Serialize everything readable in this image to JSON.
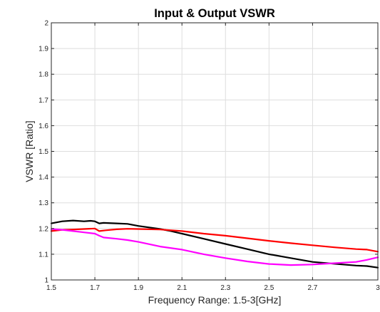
{
  "chart_data": {
    "type": "line",
    "title": "Input & Output VSWR",
    "xlabel": "Frequency Range: 1.5-3[GHz]",
    "ylabel": "VSWR [Ratio]",
    "xlim": [
      1.5,
      3
    ],
    "ylim": [
      1,
      2
    ],
    "xticks": [
      "1.5",
      "1.7",
      "1.9",
      "2.1",
      "2.3",
      "2.5",
      "2.7",
      "3"
    ],
    "xtick_values": [
      1.5,
      1.7,
      1.9,
      2.1,
      2.3,
      2.5,
      2.7,
      3
    ],
    "yticks": [
      "1",
      "1.1",
      "1.2",
      "1.3",
      "1.4",
      "1.5",
      "1.6",
      "1.7",
      "1.8",
      "1.9",
      "2"
    ],
    "ytick_values": [
      1,
      1.1,
      1.2,
      1.3,
      1.4,
      1.5,
      1.6,
      1.7,
      1.8,
      1.9,
      2
    ],
    "grid": true,
    "series": [
      {
        "color": "#000000",
        "x": [
          1.5,
          1.55,
          1.6,
          1.65,
          1.68,
          1.7,
          1.72,
          1.74,
          1.8,
          1.85,
          1.9,
          2.0,
          2.05,
          2.1,
          2.2,
          2.3,
          2.4,
          2.5,
          2.6,
          2.7,
          2.8,
          2.9,
          2.95,
          3.0
        ],
        "y": [
          1.22,
          1.228,
          1.231,
          1.228,
          1.23,
          1.228,
          1.22,
          1.222,
          1.22,
          1.218,
          1.21,
          1.198,
          1.19,
          1.18,
          1.16,
          1.14,
          1.12,
          1.1,
          1.085,
          1.07,
          1.063,
          1.056,
          1.054,
          1.048
        ]
      },
      {
        "color": "#ff0000",
        "x": [
          1.5,
          1.55,
          1.6,
          1.65,
          1.7,
          1.72,
          1.75,
          1.8,
          1.85,
          1.9,
          2.0,
          2.1,
          2.2,
          2.3,
          2.4,
          2.5,
          2.6,
          2.7,
          2.8,
          2.9,
          2.95,
          3.0
        ],
        "y": [
          1.19,
          1.195,
          1.196,
          1.198,
          1.2,
          1.19,
          1.193,
          1.197,
          1.199,
          1.198,
          1.196,
          1.19,
          1.18,
          1.172,
          1.162,
          1.152,
          1.143,
          1.135,
          1.127,
          1.12,
          1.118,
          1.11
        ]
      },
      {
        "color": "#ff00ff",
        "x": [
          1.5,
          1.55,
          1.6,
          1.65,
          1.7,
          1.72,
          1.74,
          1.8,
          1.85,
          1.9,
          2.0,
          2.1,
          2.2,
          2.3,
          2.4,
          2.5,
          2.6,
          2.7,
          2.8,
          2.9,
          2.95,
          3.0
        ],
        "y": [
          1.198,
          1.195,
          1.19,
          1.185,
          1.18,
          1.172,
          1.165,
          1.16,
          1.155,
          1.148,
          1.13,
          1.118,
          1.1,
          1.085,
          1.072,
          1.062,
          1.058,
          1.06,
          1.065,
          1.07,
          1.078,
          1.088
        ]
      }
    ]
  }
}
